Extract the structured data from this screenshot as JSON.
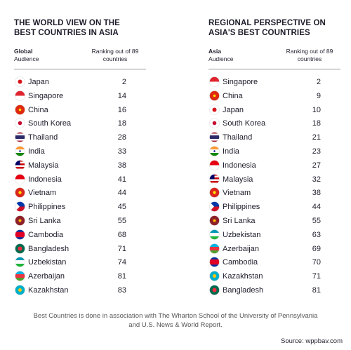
{
  "panels": [
    {
      "title": "THE WORLD VIEW ON THE BEST COUNTRIES IN ASIA",
      "audience_label": "Global",
      "audience_sub": "Audience",
      "ranking_label": "Ranking out of 89 countries",
      "rows": [
        [
          "Japan",
          2
        ],
        [
          "Singapore",
          14
        ],
        [
          "China",
          16
        ],
        [
          "South Korea",
          18
        ],
        [
          "Thailand",
          28
        ],
        [
          "India",
          33
        ],
        [
          "Malaysia",
          38
        ],
        [
          "Indonesia",
          41
        ],
        [
          "Vietnam",
          44
        ],
        [
          "Philippines",
          45
        ],
        [
          "Sri Lanka",
          55
        ],
        [
          "Cambodia",
          68
        ],
        [
          "Bangladesh",
          71
        ],
        [
          "Uzbekistan",
          74
        ],
        [
          "Azerbaijan",
          81
        ],
        [
          "Kazakhstan",
          83
        ]
      ]
    },
    {
      "title": "REGIONAL PERSPECTIVE ON ASIA'S BEST COUNTRIES",
      "audience_label": "Asia",
      "audience_sub": "Audience",
      "ranking_label": "Ranking out of 89 countries",
      "rows": [
        [
          "Singapore",
          2
        ],
        [
          "China",
          9
        ],
        [
          "Japan",
          10
        ],
        [
          "South Korea",
          18
        ],
        [
          "Thailand",
          21
        ],
        [
          "India",
          23
        ],
        [
          "Indonesia",
          27
        ],
        [
          "Malaysia",
          32
        ],
        [
          "Vietnam",
          38
        ],
        [
          "Philippines",
          44
        ],
        [
          "Sri Lanka",
          55
        ],
        [
          "Uzbekistan",
          63
        ],
        [
          "Azerbaijan",
          69
        ],
        [
          "Cambodia",
          70
        ],
        [
          "Kazakhstan",
          71
        ],
        [
          "Bangladesh",
          81
        ]
      ]
    }
  ],
  "footer": {
    "note": "Best Countries is done in association with The Wharton School of the University of Pennsylvania and U.S. News & World Report.",
    "source": "Source: wppbav.com"
  }
}
